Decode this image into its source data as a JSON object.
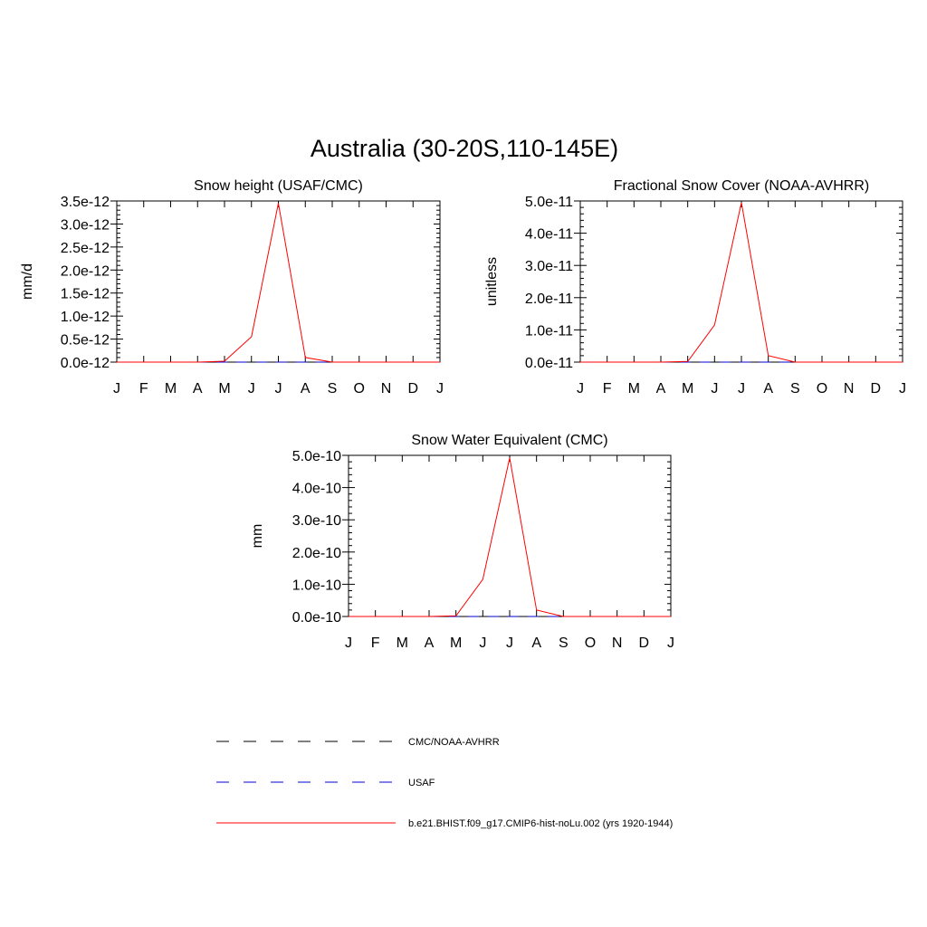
{
  "figure": {
    "title": "Australia (30-20S,110-145E)"
  },
  "chart_data": [
    {
      "type": "line",
      "title": "Snow height (USAF/CMC)",
      "xlabel": "",
      "ylabel": "mm/d",
      "x_tick_labels": [
        "J",
        "F",
        "M",
        "A",
        "M",
        "J",
        "J",
        "A",
        "S",
        "O",
        "N",
        "D",
        "J"
      ],
      "y_tick_labels": [
        "0.0e-12",
        "0.5e-12",
        "1.0e-12",
        "1.5e-12",
        "2.0e-12",
        "2.5e-12",
        "3.0e-12",
        "3.5e-12"
      ],
      "ylim": [
        0,
        3.5e-12
      ],
      "series": [
        {
          "name": "CMC/NOAA-AVHRR",
          "color": "#000000",
          "dash": "dashed",
          "values": [
            0,
            0,
            0,
            0,
            0,
            0,
            0,
            0,
            0,
            0,
            0,
            0,
            0
          ]
        },
        {
          "name": "USAF",
          "color": "#0000cc",
          "dash": "dashed",
          "values": [
            0,
            0,
            0,
            0,
            0,
            0,
            0,
            0,
            0,
            0,
            0,
            0,
            0
          ]
        },
        {
          "name": "b.e21.BHIST.f09_g17.CMIP6-hist-noLu.002 (yrs 1920-1944)",
          "color": "#ff0000",
          "dash": "solid",
          "values": [
            0,
            0,
            0,
            0,
            2e-14,
            5.5e-13,
            3.45e-12,
            1e-13,
            0,
            0,
            0,
            0,
            0
          ]
        }
      ]
    },
    {
      "type": "line",
      "title": "Fractional Snow Cover (NOAA-AVHRR)",
      "xlabel": "",
      "ylabel": "unitless",
      "x_tick_labels": [
        "J",
        "F",
        "M",
        "A",
        "M",
        "J",
        "J",
        "A",
        "S",
        "O",
        "N",
        "D",
        "J"
      ],
      "y_tick_labels": [
        "0.0e-11",
        "1.0e-11",
        "2.0e-11",
        "3.0e-11",
        "4.0e-11",
        "5.0e-11"
      ],
      "ylim": [
        0,
        5e-11
      ],
      "series": [
        {
          "name": "CMC/NOAA-AVHRR",
          "color": "#000000",
          "dash": "dashed",
          "values": [
            0,
            0,
            0,
            0,
            0,
            0,
            0,
            0,
            0,
            0,
            0,
            0,
            0
          ]
        },
        {
          "name": "USAF",
          "color": "#0000cc",
          "dash": "dashed",
          "values": [
            0,
            0,
            0,
            0,
            0,
            0,
            0,
            0,
            0,
            0,
            0,
            0,
            0
          ]
        },
        {
          "name": "b.e21.BHIST.f09_g17.CMIP6-hist-noLu.002 (yrs 1920-1944)",
          "color": "#ff0000",
          "dash": "solid",
          "values": [
            0,
            0,
            0,
            0,
            2e-13,
            1.15e-11,
            4.95e-11,
            2e-12,
            0,
            0,
            0,
            0,
            0
          ]
        }
      ]
    },
    {
      "type": "line",
      "title": "Snow Water Equivalent (CMC)",
      "xlabel": "",
      "ylabel": "mm",
      "x_tick_labels": [
        "J",
        "F",
        "M",
        "A",
        "M",
        "J",
        "J",
        "A",
        "S",
        "O",
        "N",
        "D",
        "J"
      ],
      "y_tick_labels": [
        "0.0e-10",
        "1.0e-10",
        "2.0e-10",
        "3.0e-10",
        "4.0e-10",
        "5.0e-10"
      ],
      "ylim": [
        0,
        5e-10
      ],
      "series": [
        {
          "name": "CMC/NOAA-AVHRR",
          "color": "#000000",
          "dash": "dashed",
          "values": [
            0,
            0,
            0,
            0,
            0,
            0,
            0,
            0,
            0,
            0,
            0,
            0,
            0
          ]
        },
        {
          "name": "USAF",
          "color": "#0000cc",
          "dash": "dashed",
          "values": [
            0,
            0,
            0,
            0,
            0,
            0,
            0,
            0,
            0,
            0,
            0,
            0,
            0
          ]
        },
        {
          "name": "b.e21.BHIST.f09_g17.CMIP6-hist-noLu.002 (yrs 1920-1944)",
          "color": "#ff0000",
          "dash": "solid",
          "values": [
            0,
            0,
            0,
            0,
            2e-12,
            1.15e-10,
            4.92e-10,
            2e-11,
            0,
            0,
            0,
            0,
            0
          ]
        }
      ]
    }
  ],
  "legend": {
    "placement": "bottom-center",
    "items": [
      {
        "label": "CMC/NOAA-AVHRR",
        "color": "#000000",
        "dash": "dashed"
      },
      {
        "label": "USAF",
        "color": "#0000cc",
        "dash": "dashed"
      },
      {
        "label": "b.e21.BHIST.f09_g17.CMIP6-hist-noLu.002 (yrs 1920-1944)",
        "color": "#ff0000",
        "dash": "solid"
      }
    ]
  }
}
